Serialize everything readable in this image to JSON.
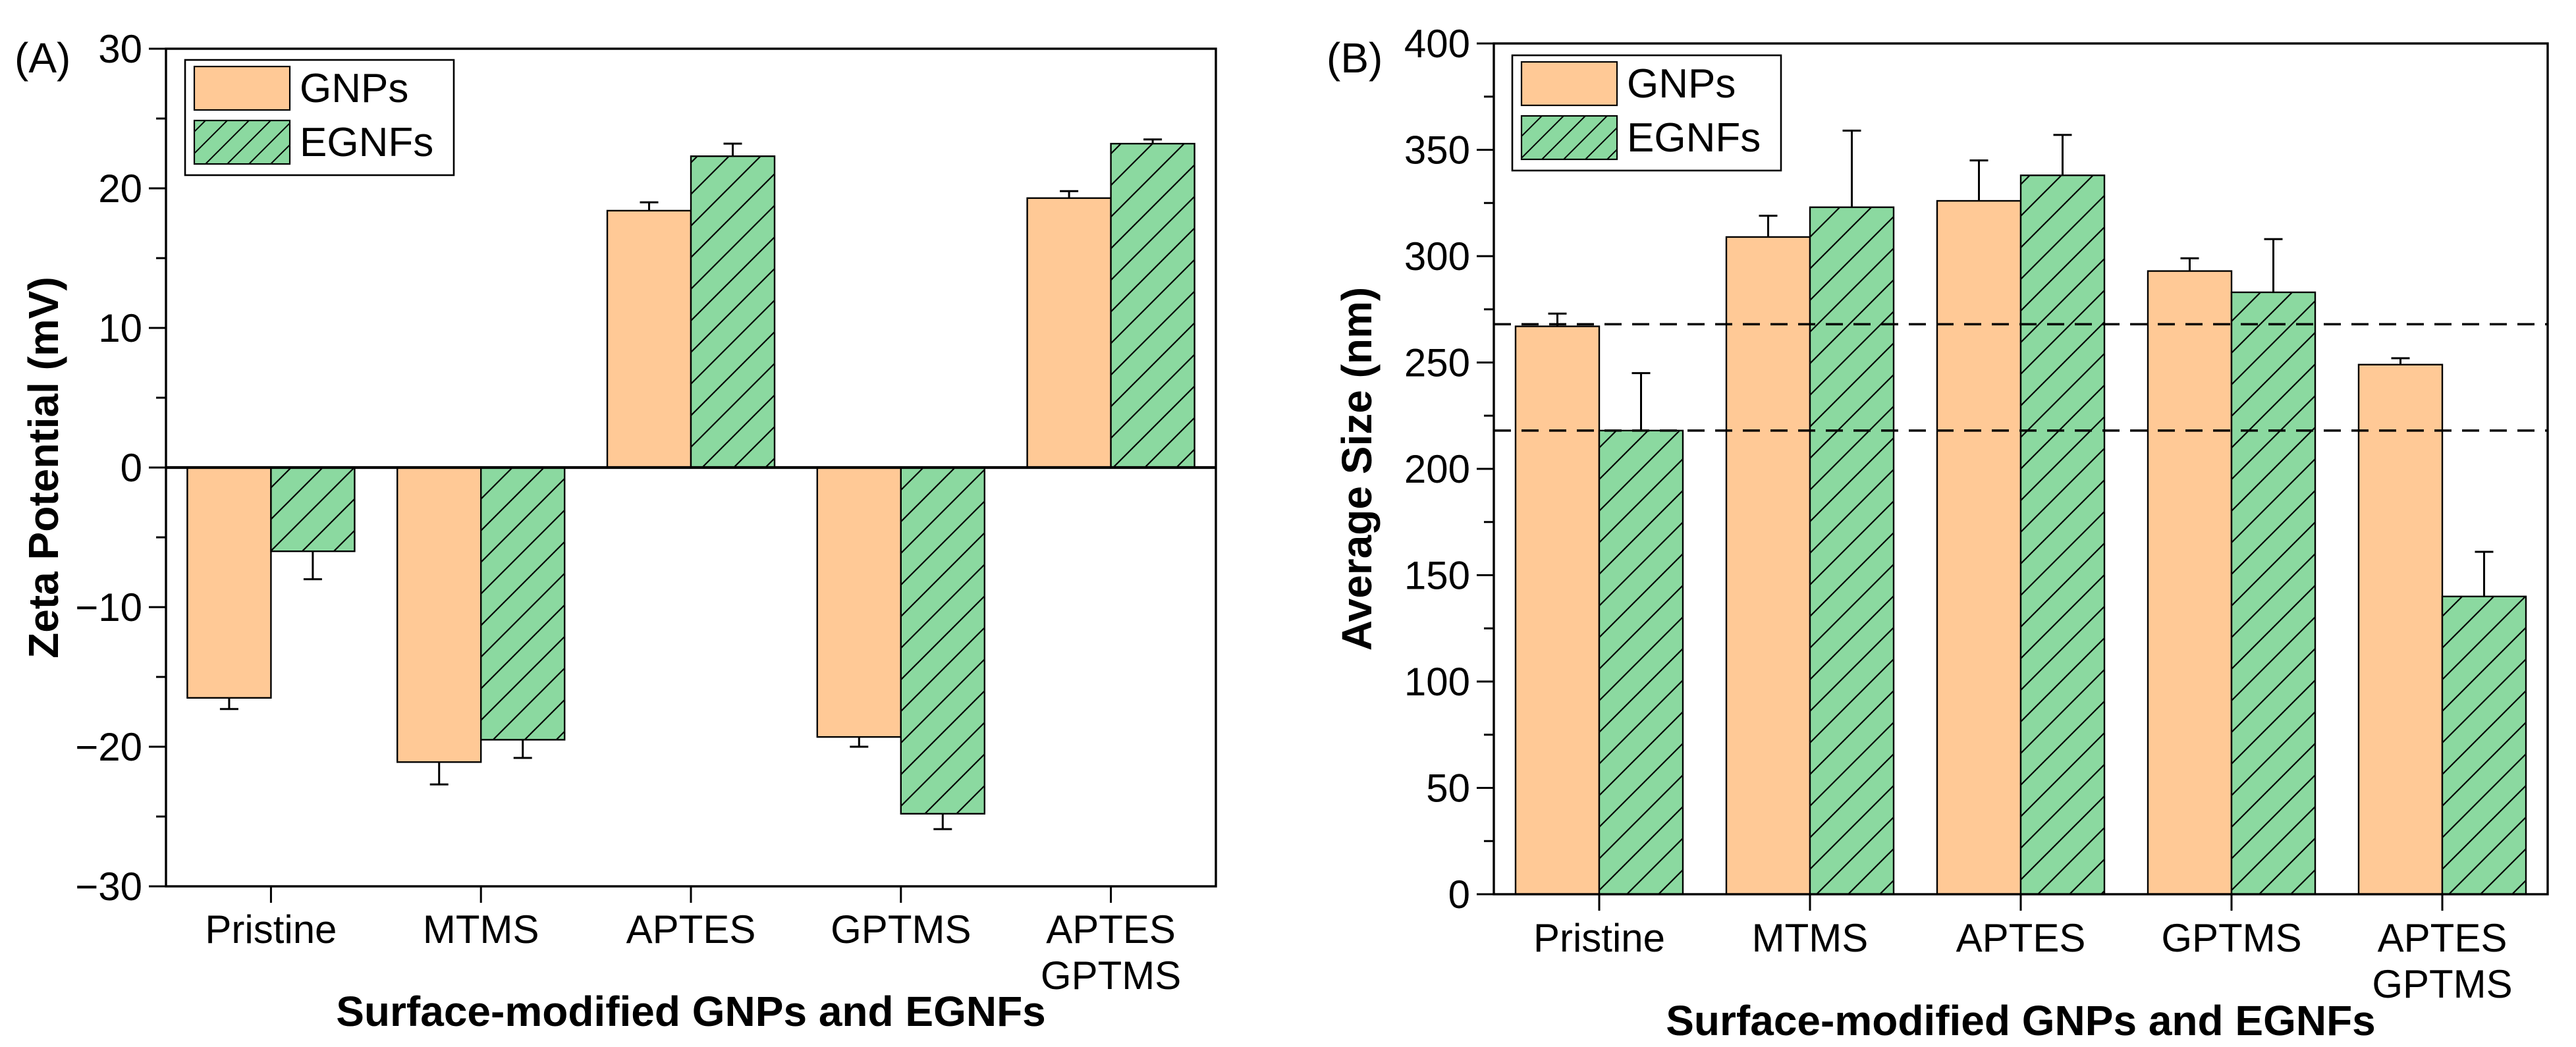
{
  "figure": {
    "description": "Two-panel bar chart figure comparing surface-modified GNPs and EGNFs",
    "background": "#FFFFFF",
    "axis_color": "#000000",
    "bar_border_color": "#000000",
    "gnps_fill": "#FFC996",
    "egnfs_fill": "#8BD9A0",
    "hatch_color": "#000000"
  },
  "chart_data": [
    {
      "id": "A",
      "panel_label": "(A)",
      "type": "bar",
      "title": "",
      "xlabel": "Surface-modified GNPs and EGNFs",
      "ylabel": "Zeta Potential (mV)",
      "ylim": [
        -30,
        30
      ],
      "ytick_major": 10,
      "ytick_minor": 5,
      "ytick_labels": [
        "-30",
        "-20",
        "-10",
        "0",
        "10",
        "20",
        "30"
      ],
      "grid": false,
      "legend_position": "top-left",
      "legend_entries": [
        "GNPs",
        "EGNFs"
      ],
      "categories": [
        "Pristine",
        "MTMS",
        "APTES",
        "GPTMS",
        "APTES\nGPTMS"
      ],
      "series": [
        {
          "name": "GNPs",
          "values": [
            -16.5,
            -21.1,
            18.4,
            -19.3,
            19.3
          ],
          "errors": [
            0.8,
            1.6,
            0.6,
            0.7,
            0.5
          ],
          "fill": "#FFC996",
          "hatch": false
        },
        {
          "name": "EGNFs",
          "values": [
            -6.0,
            -19.5,
            22.3,
            -24.8,
            23.2
          ],
          "errors": [
            2.0,
            1.3,
            0.9,
            1.1,
            0.3
          ],
          "fill": "#8BD9A0",
          "hatch": true
        }
      ],
      "reference_lines": []
    },
    {
      "id": "B",
      "panel_label": "(B)",
      "type": "bar",
      "title": "",
      "xlabel": "Surface-modified GNPs and EGNFs",
      "ylabel": "Average Size (nm)",
      "ylim": [
        0,
        400
      ],
      "ytick_major": 50,
      "ytick_minor": 25,
      "ytick_labels": [
        "0",
        "50",
        "100",
        "150",
        "200",
        "250",
        "300",
        "350",
        "400"
      ],
      "grid": false,
      "legend_position": "top-left",
      "legend_entries": [
        "GNPs",
        "EGNFs"
      ],
      "categories": [
        "Pristine",
        "MTMS",
        "APTES",
        "GPTMS",
        "APTES\nGPTMS"
      ],
      "series": [
        {
          "name": "GNPs",
          "values": [
            267,
            309,
            326,
            293,
            249
          ],
          "errors": [
            6,
            10,
            19,
            6,
            3
          ],
          "fill": "#FFC996",
          "hatch": false
        },
        {
          "name": "EGNFs",
          "values": [
            218,
            323,
            338,
            283,
            140
          ],
          "errors": [
            27,
            36,
            19,
            25,
            21
          ],
          "fill": "#8BD9A0",
          "hatch": true
        }
      ],
      "reference_lines": [
        {
          "value": 268,
          "style": "dashed"
        },
        {
          "value": 218,
          "style": "dashed"
        }
      ]
    }
  ]
}
